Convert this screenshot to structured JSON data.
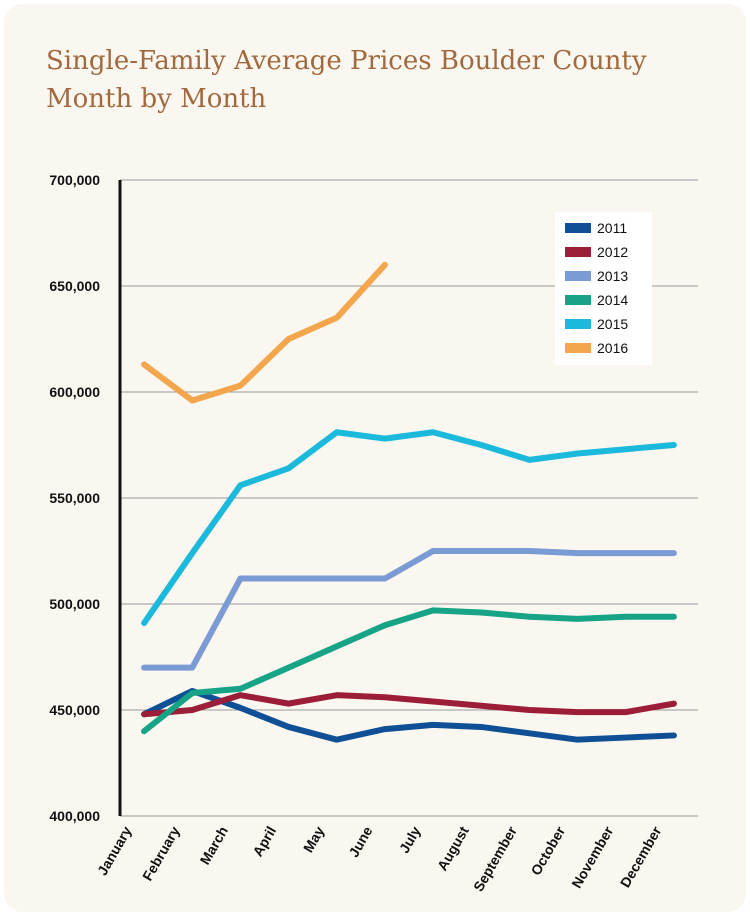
{
  "chart_data": {
    "type": "line",
    "title": "Single-Family Average Prices Boulder County Month by Month",
    "categories": [
      "January",
      "February",
      "March",
      "April",
      "May",
      "June",
      "July",
      "August",
      "September",
      "October",
      "November",
      "December"
    ],
    "series": [
      {
        "name": "2011",
        "color": "#0e4f96",
        "values": [
          448000,
          459000,
          451000,
          442000,
          436000,
          441000,
          443000,
          442000,
          439000,
          436000,
          437000,
          438000
        ]
      },
      {
        "name": "2012",
        "color": "#9c1d37",
        "values": [
          448000,
          450000,
          457000,
          453000,
          457000,
          456000,
          454000,
          452000,
          450000,
          449000,
          449000,
          453000
        ]
      },
      {
        "name": "2013",
        "color": "#7b9bd5",
        "values": [
          470000,
          470000,
          512000,
          512000,
          512000,
          512000,
          525000,
          525000,
          525000,
          524000,
          524000,
          524000
        ]
      },
      {
        "name": "2014",
        "color": "#17a385",
        "values": [
          440000,
          458000,
          460000,
          470000,
          480000,
          490000,
          497000,
          496000,
          494000,
          493000,
          494000,
          494000
        ]
      },
      {
        "name": "2015",
        "color": "#1bb9dc",
        "values": [
          491000,
          524000,
          556000,
          564000,
          581000,
          578000,
          581000,
          575000,
          568000,
          571000,
          573000,
          575000
        ]
      },
      {
        "name": "2016",
        "color": "#f3a64b",
        "values": [
          613000,
          596000,
          603000,
          625000,
          635000,
          660000,
          null,
          null,
          null,
          null,
          null,
          null
        ]
      }
    ],
    "ylim": [
      400000,
      700000
    ],
    "yticks": [
      {
        "value": 400000,
        "label": "400,000"
      },
      {
        "value": 450000,
        "label": "450,000"
      },
      {
        "value": 500000,
        "label": "500,000"
      },
      {
        "value": 550000,
        "label": "550,000"
      },
      {
        "value": 600000,
        "label": "600,000"
      },
      {
        "value": 650000,
        "label": "650,000"
      },
      {
        "value": 700000,
        "label": "700,000"
      }
    ],
    "grid": true,
    "legend": "upper-right"
  }
}
